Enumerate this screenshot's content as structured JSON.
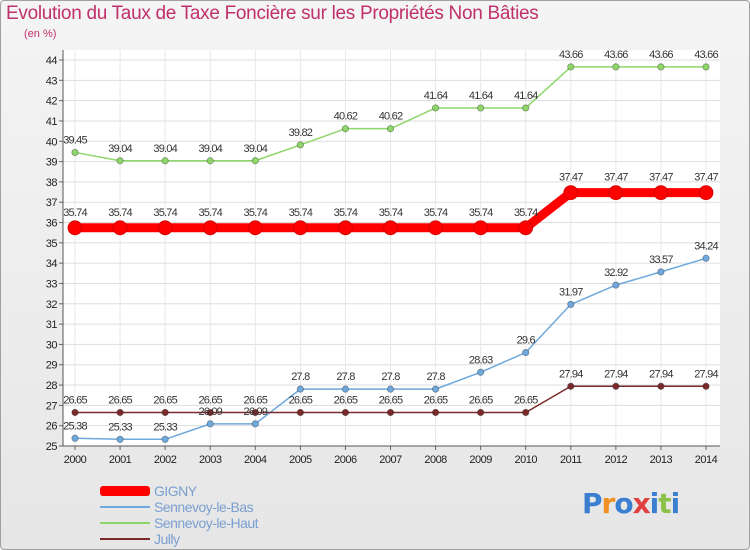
{
  "header": {
    "title": "Evolution du Taux de Taxe Foncière sur les Propriétés Non Bâties",
    "unit": "(en %)"
  },
  "chart_data": {
    "type": "line",
    "title": "Evolution du Taux de Taxe Foncière sur les Propriétés Non Bâties",
    "ylabel": "(en %)",
    "xlabel": "",
    "x": [
      2000,
      2001,
      2002,
      2003,
      2004,
      2005,
      2006,
      2007,
      2008,
      2009,
      2010,
      2011,
      2012,
      2013,
      2014
    ],
    "ylim": [
      25,
      44
    ],
    "yticks": [
      25,
      26,
      27,
      28,
      29,
      30,
      31,
      32,
      33,
      34,
      35,
      36,
      37,
      38,
      39,
      40,
      41,
      42,
      43,
      44
    ],
    "grid": true,
    "legend_position": "bottom-left",
    "series": [
      {
        "name": "GIGNY",
        "color": "#ff0000",
        "emphasis": true,
        "values": [
          35.74,
          35.74,
          35.74,
          35.74,
          35.74,
          35.74,
          35.74,
          35.74,
          35.74,
          35.74,
          35.74,
          37.47,
          37.47,
          37.47,
          37.47
        ],
        "labels": [
          "35.74",
          "35.74",
          "35.74",
          "35.74",
          "35.74",
          "35.74",
          "35.74",
          "35.74",
          "35.74",
          "35.74",
          "35.74",
          "37.47",
          "37.47",
          "37.47",
          "37.47"
        ]
      },
      {
        "name": "Sennevoy-le-Bas",
        "color": "#6fa8dc",
        "values": [
          25.38,
          25.33,
          25.33,
          26.09,
          26.09,
          27.8,
          27.8,
          27.8,
          27.8,
          28.63,
          29.6,
          31.97,
          32.92,
          33.57,
          34.24
        ],
        "labels": [
          "25.38",
          "25.33",
          "25.33",
          "26.09",
          "26.09",
          "27.8",
          "27.8",
          "27.8",
          "27.8",
          "28.63",
          "29.6",
          "31.97",
          "32.92",
          "33.57",
          "34.24"
        ]
      },
      {
        "name": "Sennevoy-le-Haut",
        "color": "#8fd66a",
        "values": [
          39.45,
          39.04,
          39.04,
          39.04,
          39.04,
          39.82,
          40.62,
          40.62,
          41.64,
          41.64,
          41.64,
          43.66,
          43.66,
          43.66,
          43.66
        ],
        "labels": [
          "39.45",
          "39.04",
          "39.04",
          "39.04",
          "39.04",
          "39.82",
          "40.62",
          "40.62",
          "41.64",
          "41.64",
          "41.64",
          "43.66",
          "43.66",
          "43.66",
          "43.66"
        ]
      },
      {
        "name": "Jully",
        "color": "#7a2a2a",
        "values": [
          26.65,
          26.65,
          26.65,
          26.65,
          26.65,
          26.65,
          26.65,
          26.65,
          26.65,
          26.65,
          26.65,
          27.94,
          27.94,
          27.94,
          27.94
        ],
        "labels": [
          "26.65",
          "26.65",
          "26.65",
          "26.65",
          "26.65",
          "26.65",
          "26.65",
          "26.65",
          "26.65",
          "26.65",
          "26.65",
          "27.94",
          "27.94",
          "27.94",
          "27.94"
        ]
      }
    ]
  },
  "legend": {
    "items": [
      {
        "label": "GIGNY",
        "color": "#ff0000"
      },
      {
        "label": "Sennevoy-le-Bas",
        "color": "#6fa8dc"
      },
      {
        "label": "Sennevoy-le-Haut",
        "color": "#8fd66a"
      },
      {
        "label": "Jully",
        "color": "#7a2a2a"
      }
    ]
  },
  "logo": {
    "text": "Proxiti",
    "colors": [
      "#3a7fd0",
      "#f09020",
      "#3a7fd0",
      "#e04040",
      "#3a7fd0",
      "#8bc34a",
      "#3a7fd0"
    ]
  }
}
